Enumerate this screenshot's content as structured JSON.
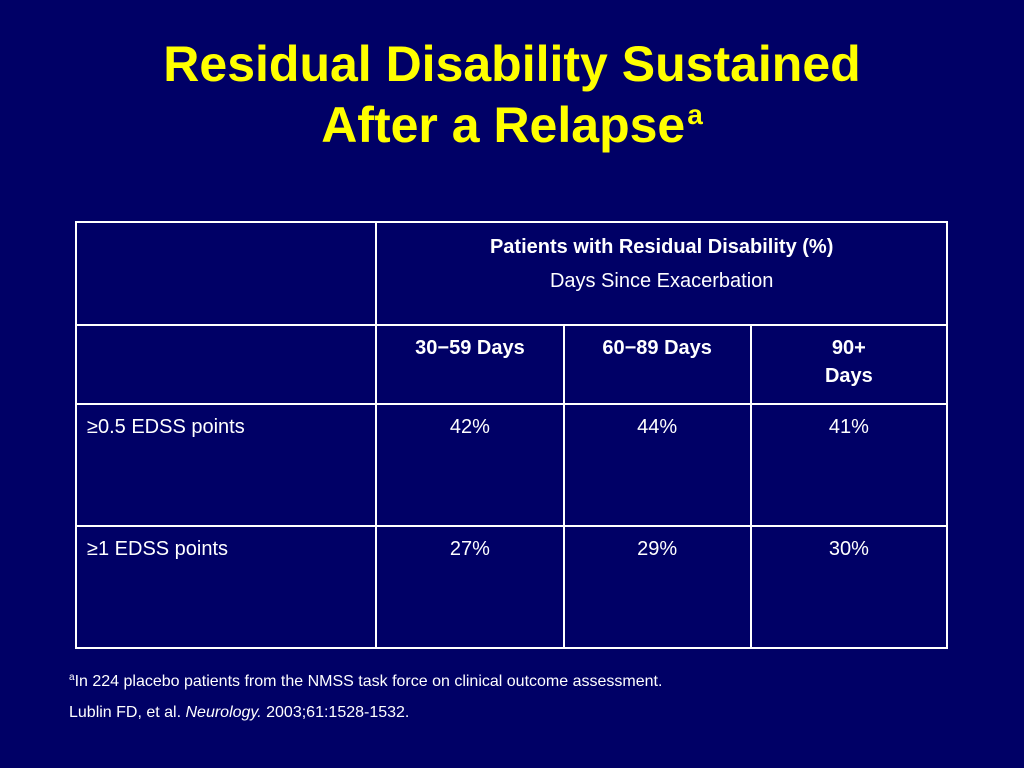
{
  "slide": {
    "title_line1": "Residual Disability Sustained",
    "title_line2": "After a Relapse",
    "title_marker": "a",
    "colors": {
      "background": "#000066",
      "title": "#ffff00",
      "text": "#ffffff",
      "border": "#ffffff"
    }
  },
  "table": {
    "header_title": "Patients with Residual Disability (%)",
    "header_subtitle": "Days Since Exacerbation",
    "columns": [
      {
        "line1": "30−59 Days",
        "line2": ""
      },
      {
        "line1": "60−89 Days",
        "line2": ""
      },
      {
        "line1": "90+",
        "line2": "Days"
      }
    ],
    "rows": [
      {
        "label": "≥0.5 EDSS points",
        "values": [
          "42%",
          "44%",
          "41%"
        ]
      },
      {
        "label": "≥1 EDSS points",
        "values": [
          "27%",
          "29%",
          "30%"
        ]
      }
    ]
  },
  "footnote": {
    "marker": "a",
    "text": "In 224 placebo patients from the NMSS task force on clinical outcome assessment.",
    "ref_authors": "Lublin FD, et al. ",
    "ref_journal": "Neurology.",
    "ref_details": " 2003;61:1528-1532."
  }
}
